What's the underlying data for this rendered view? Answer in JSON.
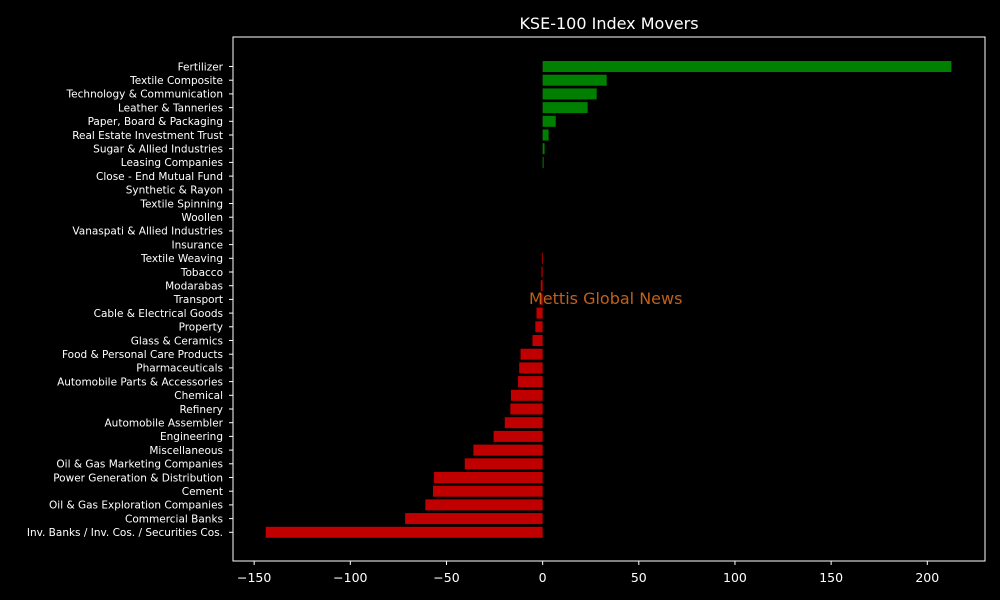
{
  "chart_data": {
    "type": "bar",
    "orientation": "horizontal",
    "title": "KSE-100 Index Movers",
    "xlabel": "",
    "ylabel": "",
    "xlim": [
      -161,
      230
    ],
    "xticks": [
      -150,
      -100,
      -50,
      0,
      50,
      100,
      150,
      200
    ],
    "xtick_labels": [
      "−150",
      "−100",
      "−50",
      "0",
      "50",
      "100",
      "150",
      "200"
    ],
    "watermark": "Mettis Global News",
    "colors": {
      "background": "#000000",
      "axes_edge": "#ffffff",
      "text": "#ffffff",
      "positive": "#008000",
      "negative": "#c00000",
      "watermark": "#c0601a"
    },
    "grid": false,
    "legend": "none",
    "categories": [
      "Fertilizer",
      "Textile Composite",
      "Technology & Communication",
      "Leather & Tanneries",
      "Paper, Board & Packaging",
      "Real Estate Investment Trust",
      "Sugar & Allied Industries",
      "Leasing Companies",
      "Close - End Mutual Fund",
      "Synthetic & Rayon",
      "Textile Spinning",
      "Woollen",
      "Vanaspati & Allied Industries",
      "Insurance",
      "Textile Weaving",
      "Tobacco",
      "Modarabas",
      "Transport",
      "Cable & Electrical Goods",
      "Property",
      "Glass & Ceramics",
      "Food & Personal Care Products",
      "Pharmaceuticals",
      "Automobile Parts & Accessories",
      "Chemical",
      "Refinery",
      "Automobile Assembler",
      "Engineering",
      "Miscellaneous",
      "Oil & Gas Marketing Companies",
      "Power Generation & Distribution",
      "Cement",
      "Oil & Gas Exploration Companies",
      "Commercial Banks",
      "Inv. Banks / Inv. Cos. / Securities Cos."
    ],
    "values": [
      212.5,
      33.3,
      28.1,
      23.4,
      6.8,
      3.1,
      1.0,
      0.5,
      0,
      0,
      0,
      0,
      0,
      0,
      -0.3,
      -0.6,
      -1.0,
      -1.4,
      -3.2,
      -3.8,
      -5.3,
      -11.5,
      -12.2,
      -12.8,
      -16.5,
      -16.8,
      -19.7,
      -25.5,
      -36.0,
      -40.5,
      -56.5,
      -57.0,
      -61.0,
      -71.5,
      -144.0
    ]
  }
}
